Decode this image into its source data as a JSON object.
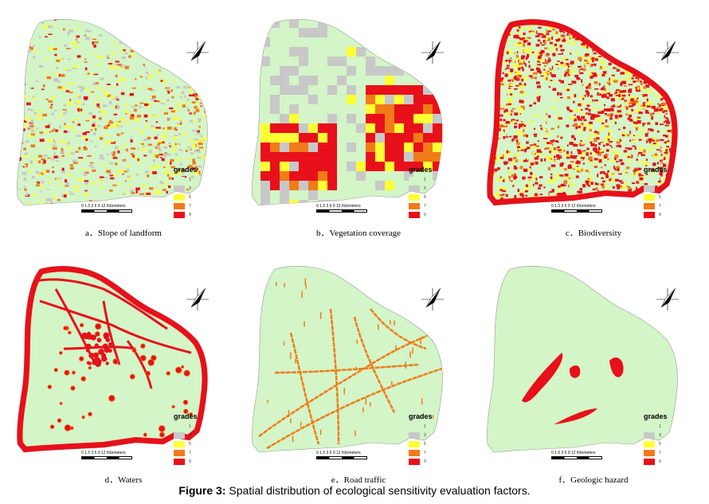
{
  "legend": {
    "title": "grades",
    "labels": [
      "1",
      "3",
      "5",
      "7",
      "9"
    ],
    "colors": [
      "#d3f5c7",
      "#c8c8c8",
      "#ffff33",
      "#f07b18",
      "#e8101a"
    ]
  },
  "scalebar": {
    "ticks": "0 1.5 3 6 9 12",
    "unit": "Kilometers"
  },
  "panels": [
    {
      "caption": "a．Slope of landform"
    },
    {
      "caption": "b．Vegetation coverage"
    },
    {
      "caption": "c．Biodiversity"
    },
    {
      "caption": "d．Waters"
    },
    {
      "caption": "e．Road traffic"
    },
    {
      "caption": "f．Geologic hazard"
    }
  ],
  "figure": {
    "label": "Figure 3:",
    "text": " Spatial distribution of ecological sensitivity evaluation factors."
  }
}
